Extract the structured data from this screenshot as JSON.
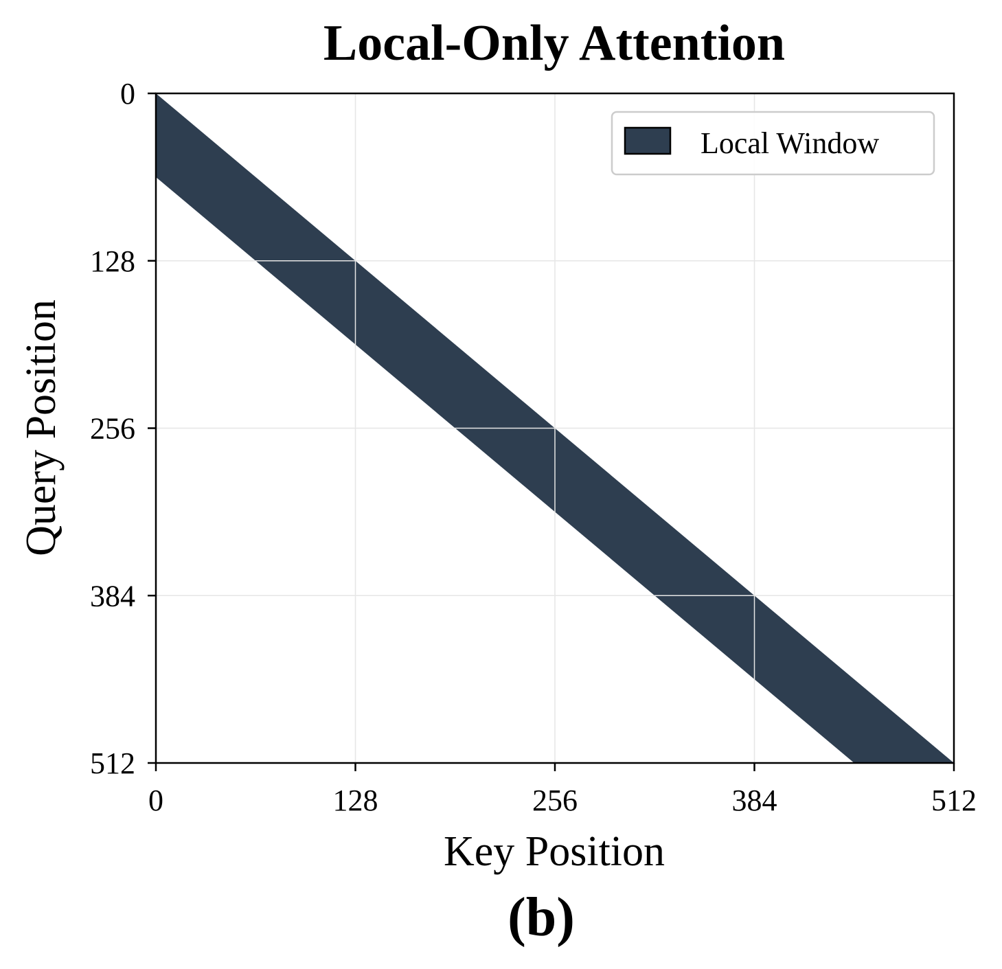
{
  "chart_data": {
    "type": "heatmap",
    "title": "Local-Only Attention",
    "xlabel": "Key Position",
    "ylabel": "Query Position",
    "panel_label": "(b)",
    "xlim": [
      0,
      512
    ],
    "ylim": [
      0,
      512
    ],
    "y_inverted": true,
    "x_ticks": [
      "0",
      "128",
      "256",
      "384",
      "512"
    ],
    "y_ticks": [
      "0",
      "128",
      "256",
      "384",
      "512"
    ],
    "x_tick_values": [
      0,
      128,
      256,
      384,
      512
    ],
    "y_tick_values": [
      0,
      128,
      256,
      384,
      512
    ],
    "grid": true,
    "legend": {
      "placement": "top-right",
      "entries": [
        {
          "label": "Local Window",
          "color": "#2e3e50"
        }
      ]
    },
    "series": [
      {
        "name": "Local Window",
        "mask": "banded",
        "band_lower_offset": -64,
        "band_upper_offset": 0,
        "description_of_band": "key >= query - 64 and key <= query"
      }
    ],
    "colors": {
      "window": "#2e3e50",
      "background": "#ffffff",
      "grid": "#e6e6e6",
      "axes": "#000000",
      "legend_border": "#cccccc"
    }
  }
}
